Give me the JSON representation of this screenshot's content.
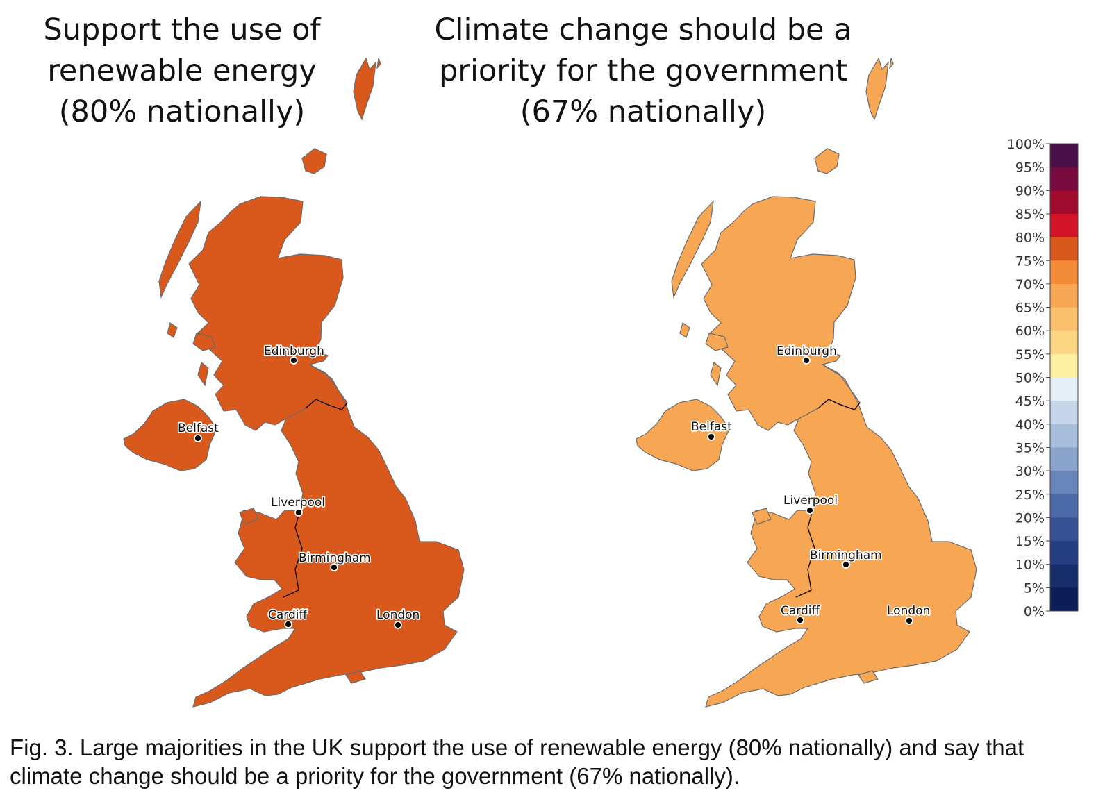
{
  "maps": [
    {
      "id": "renewable",
      "title_lines": [
        "Support the use of",
        "renewable energy",
        "(80% nationally)"
      ],
      "national_percent": 80
    },
    {
      "id": "climate",
      "title_lines": [
        "Climate change should be a",
        "priority for the government",
        "(67% nationally)"
      ],
      "national_percent": 67
    }
  ],
  "cities": [
    "Edinburgh",
    "Belfast",
    "Liverpool",
    "Birmingham",
    "Cardiff",
    "London"
  ],
  "legend": {
    "ticks": [
      "100%",
      "95%",
      "90%",
      "85%",
      "80%",
      "75%",
      "70%",
      "65%",
      "60%",
      "55%",
      "50%",
      "45%",
      "40%",
      "35%",
      "30%",
      "25%",
      "20%",
      "15%",
      "10%",
      "5%",
      "0%"
    ],
    "colors_top_to_bottom": [
      "#4a0f47",
      "#770b3e",
      "#a00b2e",
      "#d21526",
      "#d9581c",
      "#f08a37",
      "#f7a654",
      "#f9bf6a",
      "#fbd581",
      "#fdeea0",
      "#e5edf6",
      "#c6d6ea",
      "#a6bddc",
      "#88a2cc",
      "#6986bb",
      "#4d6aa8",
      "#375193",
      "#253e80",
      "#172d6a",
      "#0c1e55"
    ]
  },
  "colors": {
    "renewable_base": "#d9581c",
    "renewable_high": "#d21526",
    "renewable_highest": "#a3123c",
    "renewable_low": "#f08a37",
    "climate_base": "#f7a654",
    "climate_low": "#fbc56e",
    "climate_high": "#f08a37",
    "border": "#7f7f7f",
    "national_border": "#000000"
  },
  "caption": {
    "label": "Fig. 3",
    "text": ". Large majorities in the UK support the use of renewable energy (80% nationally) and say that climate change should be a priority for the government (67% nationally)."
  }
}
